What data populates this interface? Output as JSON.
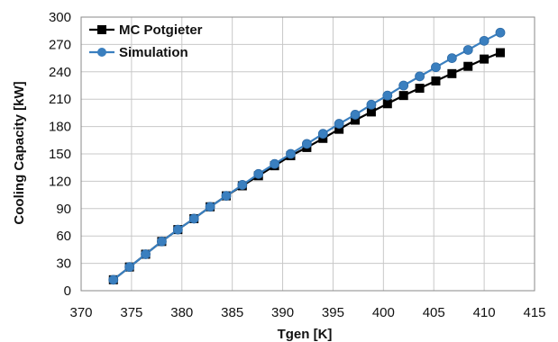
{
  "chart_data": {
    "type": "line",
    "title": "",
    "xlabel": "Tgen [K]",
    "ylabel": "Cooling Capacity [kW]",
    "xlim": [
      370,
      415
    ],
    "ylim": [
      0,
      300
    ],
    "x_ticks": [
      370,
      375,
      380,
      385,
      390,
      395,
      400,
      405,
      410,
      415
    ],
    "y_ticks": [
      0,
      30,
      60,
      90,
      120,
      150,
      180,
      210,
      240,
      270,
      300
    ],
    "grid": true,
    "legend_position": "top-left",
    "series": [
      {
        "name": "MC Potgieter",
        "color": "#000000",
        "marker": "square",
        "x": [
          373.2,
          374.8,
          376.4,
          378.0,
          379.6,
          381.2,
          382.8,
          384.4,
          386.0,
          387.6,
          389.2,
          390.8,
          392.4,
          394.0,
          395.6,
          397.2,
          398.8,
          400.4,
          402.0,
          403.6,
          405.2,
          406.8,
          408.4,
          410.0,
          411.6
        ],
        "y": [
          12,
          26,
          40,
          54,
          67,
          79,
          92,
          104,
          115,
          126,
          137,
          148,
          157,
          167,
          177,
          187,
          196,
          205,
          214,
          222,
          230,
          238,
          246,
          254,
          261
        ]
      },
      {
        "name": "Simulation",
        "color": "#3a7fbf",
        "marker": "circle",
        "x": [
          373.2,
          374.8,
          376.4,
          378.0,
          379.6,
          381.2,
          382.8,
          384.4,
          386.0,
          387.6,
          389.2,
          390.8,
          392.4,
          394.0,
          395.6,
          397.2,
          398.8,
          400.4,
          402.0,
          403.6,
          405.2,
          406.8,
          408.4,
          410.0,
          411.6
        ],
        "y": [
          12,
          26,
          40,
          54,
          67,
          79,
          92,
          104,
          116,
          128,
          139,
          150,
          161,
          172,
          183,
          193,
          204,
          214,
          225,
          235,
          245,
          255,
          264,
          274,
          283
        ]
      }
    ]
  }
}
